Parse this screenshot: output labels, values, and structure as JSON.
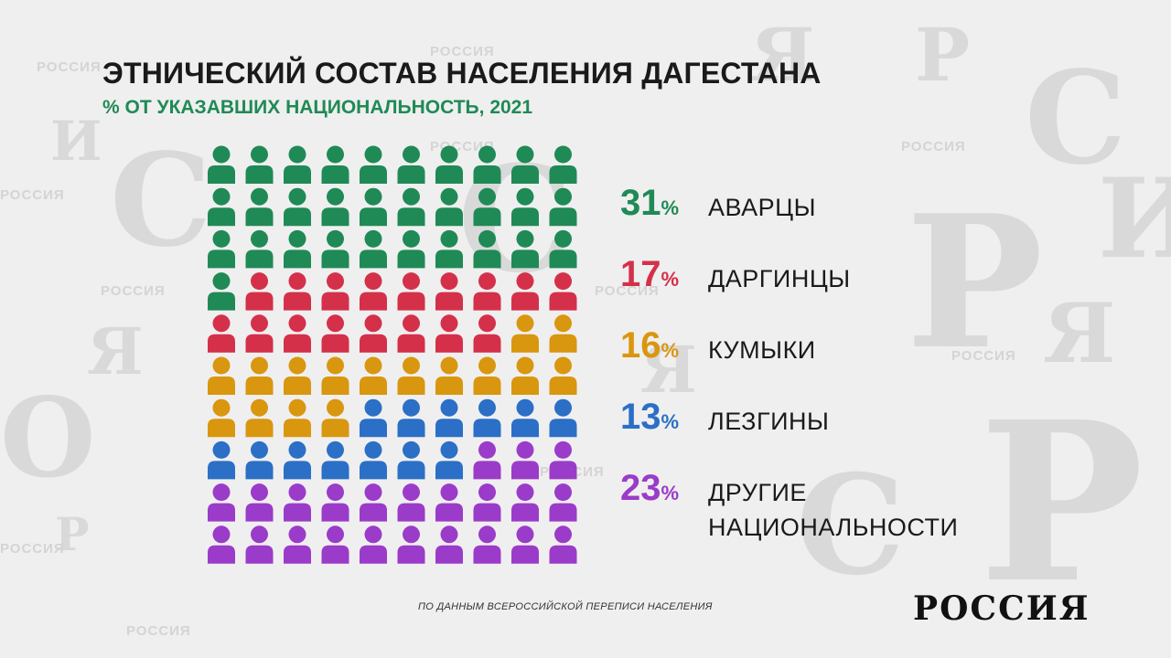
{
  "title": "ЭТНИЧЕСКИЙ СОСТАВ НАСЕЛЕНИЯ ДАГЕСТАНА",
  "subtitle": "% ОТ УКАЗАВШИХ НАЦИОНАЛЬНОСТЬ, 2021",
  "source": "ПО ДАННЫМ ВСЕРОССИЙСКОЙ ПЕРЕПИСИ НАСЕЛЕНИЯ",
  "logo": "РОССИЯ",
  "background_words": [
    "РОССИЯ",
    "РОССИЯ",
    "РОССИЯ",
    "РОССИЯ",
    "РОССИЯ",
    "РОССИЯ",
    "РОССИЯ",
    "РОССИЯ",
    "РОССИЯ",
    "РОССИЯ",
    "РОССИЯ"
  ],
  "chart_data": {
    "type": "pictogram",
    "unit_count": 100,
    "series": [
      {
        "name": "АВАРЦЫ",
        "value": 31,
        "color": "#1f8a55"
      },
      {
        "name": "ДАРГИНЦЫ",
        "value": 17,
        "color": "#d4304a"
      },
      {
        "name": "КУМЫКИ",
        "value": 16,
        "color": "#d9960f"
      },
      {
        "name": "ЛЕЗГИНЫ",
        "value": 13,
        "color": "#2b6fc6"
      },
      {
        "name": "ДРУГИЕ НАЦИОНАЛЬНОСТИ",
        "value": 23,
        "color": "#9b3bc9"
      }
    ],
    "legend": [
      {
        "value": "31",
        "unit": "%",
        "lines": [
          "АВАРЦЫ"
        ]
      },
      {
        "value": "17",
        "unit": "%",
        "lines": [
          "ДАРГИНЦЫ"
        ]
      },
      {
        "value": "16",
        "unit": "%",
        "lines": [
          "КУМЫКИ"
        ]
      },
      {
        "value": "13",
        "unit": "%",
        "lines": [
          "ЛЕЗГИНЫ"
        ]
      },
      {
        "value": "23",
        "unit": "%",
        "lines": [
          "ДРУГИЕ",
          "НАЦИОНАЛЬНОСТИ"
        ]
      }
    ]
  }
}
